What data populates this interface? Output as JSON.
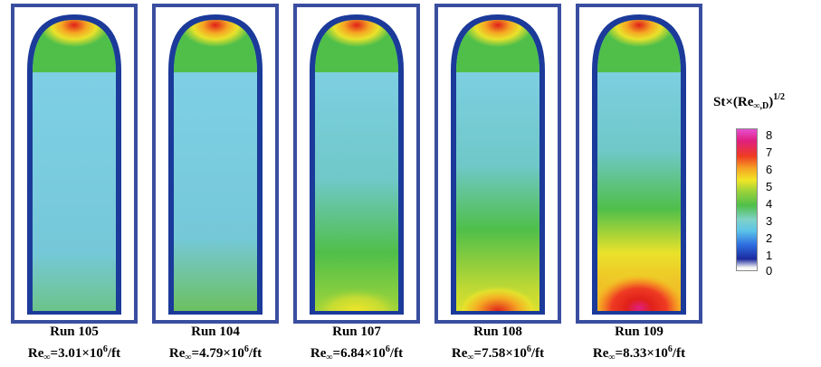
{
  "panels": [
    {
      "run": "Run 105",
      "re_value": "=3.01×10",
      "re_exp": "6",
      "re_unit": "/ft"
    },
    {
      "run": "Run 104",
      "re_value": "=4.79×10",
      "re_exp": "6",
      "re_unit": "/ft"
    },
    {
      "run": "Run 107",
      "re_value": "=6.84×10",
      "re_exp": "6",
      "re_unit": "/ft"
    },
    {
      "run": "Run 108",
      "re_value": "=7.58×10",
      "re_exp": "6",
      "re_unit": "/ft"
    },
    {
      "run": "Run 109",
      "re_value": "=8.33×10",
      "re_exp": "6",
      "re_unit": "/ft"
    }
  ],
  "re_symbol": "Re",
  "re_sub": "∞",
  "colorbar": {
    "title_prefix": "St×(Re",
    "title_sub": "∞,D",
    "title_close": ")",
    "title_exp": "1/2",
    "ticks": [
      "8",
      "7",
      "6",
      "5",
      "4",
      "3",
      "2",
      "1",
      "0"
    ]
  },
  "colors": {
    "frame": "#3a4ea0",
    "background_field": "#7fd0e6",
    "stagnation_peak": "#e0201a"
  }
}
